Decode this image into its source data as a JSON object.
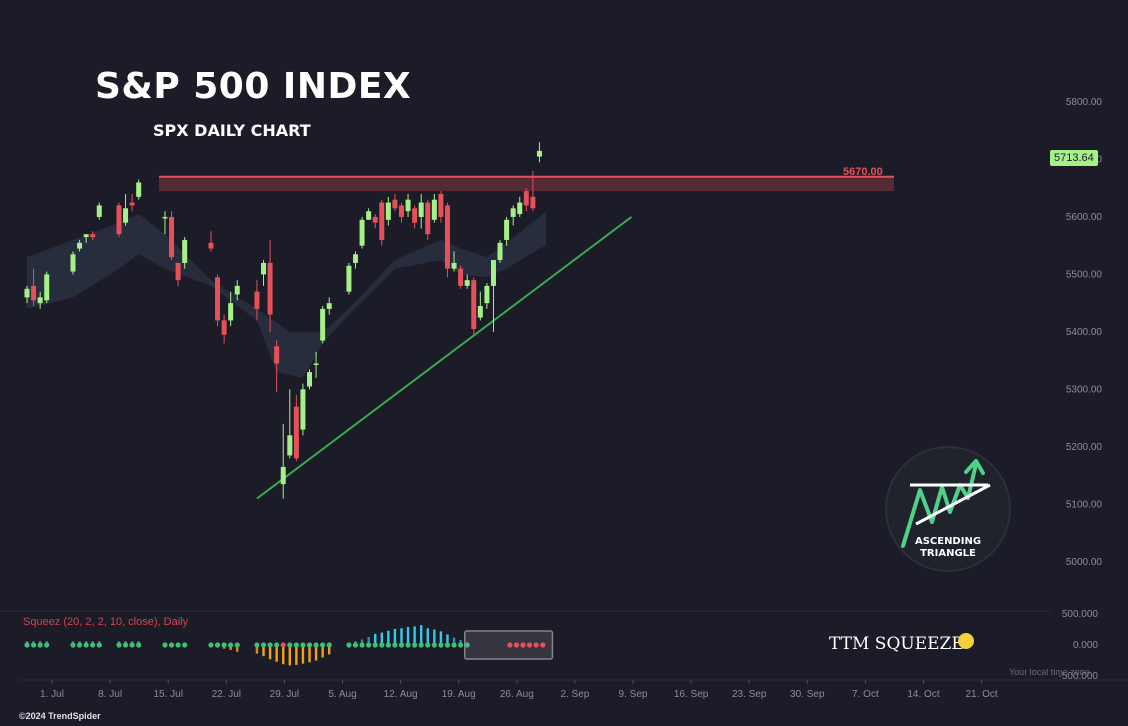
{
  "chart_data": {
    "type": "candlestick",
    "title": "S&P 500 INDEX",
    "subtitle": "SPX DAILY CHART",
    "last_price": "5713.64",
    "resistance": {
      "level": 5670,
      "label": "5670.00",
      "zone_low": 5645
    },
    "y_ticks": [
      "5800.00",
      "5700.00",
      "5600.00",
      "5500.00",
      "5400.00",
      "5300.00",
      "5200.00",
      "5100.00",
      "5000.00"
    ],
    "y_tick_values": [
      5800,
      5700,
      5600,
      5500,
      5400,
      5300,
      5200,
      5100,
      5000
    ],
    "ylim": [
      4955,
      5900
    ],
    "x_ticks": [
      "1. Jul",
      "8. Jul",
      "15. Jul",
      "22. Jul",
      "29. Jul",
      "5. Aug",
      "12. Aug",
      "19. Aug",
      "26. Aug",
      "2. Sep",
      "9. Sep",
      "16. Sep",
      "23. Sep",
      "30. Sep",
      "7. Oct",
      "14. Oct",
      "21. Oct"
    ],
    "x_tick_days": [
      0,
      7,
      14,
      21,
      28,
      35,
      42,
      49,
      56,
      63,
      70,
      77,
      84,
      91,
      98,
      105,
      112
    ],
    "trendline": {
      "from": [
        35,
        5110
      ],
      "to": [
        92,
        5600
      ]
    },
    "candles": [
      [
        0,
        5460,
        5475,
        5450,
        5480
      ],
      [
        1,
        5480,
        5455,
        5445,
        5510
      ],
      [
        2,
        5450,
        5460,
        5440,
        5470
      ],
      [
        3,
        5455,
        5500,
        5450,
        5505
      ],
      [
        7,
        5505,
        5535,
        5500,
        5540
      ],
      [
        8,
        5545,
        5555,
        5540,
        5560
      ],
      [
        9,
        5565,
        5570,
        5555,
        5570
      ],
      [
        10,
        5570,
        5565,
        5560,
        5575
      ],
      [
        11,
        5600,
        5620,
        5595,
        5625
      ],
      [
        14,
        5620,
        5570,
        5565,
        5625
      ],
      [
        15,
        5590,
        5615,
        5585,
        5640
      ],
      [
        16,
        5625,
        5620,
        5610,
        5640
      ],
      [
        17,
        5635,
        5660,
        5630,
        5665
      ],
      [
        21,
        5600,
        5600,
        5570,
        5610
      ],
      [
        22,
        5600,
        5530,
        5525,
        5610
      ],
      [
        23,
        5520,
        5490,
        5480,
        5520
      ],
      [
        24,
        5520,
        5560,
        5510,
        5565
      ],
      [
        28,
        5555,
        5545,
        5540,
        5575
      ],
      [
        29,
        5495,
        5420,
        5410,
        5500
      ],
      [
        30,
        5420,
        5395,
        5380,
        5430
      ],
      [
        31,
        5420,
        5450,
        5410,
        5470
      ],
      [
        32,
        5465,
        5480,
        5455,
        5490
      ],
      [
        35,
        5470,
        5440,
        5420,
        5490
      ],
      [
        36,
        5500,
        5520,
        5480,
        5525
      ],
      [
        37,
        5520,
        5430,
        5400,
        5560
      ],
      [
        38,
        5375,
        5345,
        5295,
        5385
      ],
      [
        39,
        5135,
        5165,
        5110,
        5240
      ],
      [
        40,
        5185,
        5220,
        5180,
        5300
      ],
      [
        41,
        5270,
        5180,
        5175,
        5290
      ],
      [
        42,
        5230,
        5300,
        5220,
        5310
      ],
      [
        43,
        5305,
        5330,
        5300,
        5335
      ],
      [
        44,
        5345,
        5345,
        5320,
        5365
      ],
      [
        45,
        5385,
        5440,
        5380,
        5445
      ],
      [
        46,
        5440,
        5450,
        5430,
        5460
      ],
      [
        49,
        5470,
        5515,
        5465,
        5520
      ],
      [
        50,
        5520,
        5535,
        5510,
        5540
      ],
      [
        51,
        5550,
        5595,
        5545,
        5600
      ],
      [
        52,
        5595,
        5610,
        5595,
        5615
      ],
      [
        53,
        5600,
        5590,
        5580,
        5605
      ],
      [
        54,
        5625,
        5560,
        5550,
        5630
      ],
      [
        55,
        5595,
        5625,
        5585,
        5635
      ],
      [
        56,
        5630,
        5615,
        5610,
        5640
      ],
      [
        57,
        5620,
        5600,
        5590,
        5625
      ],
      [
        58,
        5610,
        5630,
        5600,
        5640
      ],
      [
        59,
        5615,
        5590,
        5580,
        5620
      ],
      [
        60,
        5600,
        5625,
        5580,
        5640
      ],
      [
        61,
        5625,
        5570,
        5560,
        5630
      ],
      [
        62,
        5595,
        5630,
        5590,
        5640
      ],
      [
        63,
        5640,
        5600,
        5590,
        5645
      ],
      [
        64,
        5620,
        5510,
        5495,
        5625
      ],
      [
        65,
        5510,
        5520,
        5505,
        5540
      ],
      [
        66,
        5510,
        5480,
        5475,
        5515
      ],
      [
        67,
        5480,
        5490,
        5475,
        5500
      ],
      [
        68,
        5490,
        5405,
        5395,
        5495
      ],
      [
        69,
        5425,
        5445,
        5420,
        5470
      ],
      [
        70,
        5450,
        5480,
        5440,
        5485
      ],
      [
        71,
        5480,
        5525,
        5400,
        5525
      ],
      [
        72,
        5525,
        5555,
        5520,
        5560
      ],
      [
        73,
        5560,
        5595,
        5550,
        5600
      ],
      [
        74,
        5600,
        5615,
        5585,
        5620
      ],
      [
        75,
        5605,
        5625,
        5600,
        5635
      ],
      [
        76,
        5645,
        5620,
        5610,
        5650
      ],
      [
        77,
        5635,
        5615,
        5610,
        5680
      ],
      [
        78,
        5705,
        5715,
        5695,
        5730
      ]
    ],
    "ema_cloud": {
      "upper": [
        [
          0,
          5530
        ],
        [
          7,
          5560
        ],
        [
          14,
          5590
        ],
        [
          17,
          5605
        ],
        [
          21,
          5570
        ],
        [
          28,
          5490
        ],
        [
          35,
          5440
        ],
        [
          40,
          5400
        ],
        [
          45,
          5400
        ],
        [
          49,
          5440
        ],
        [
          56,
          5525
        ],
        [
          63,
          5560
        ],
        [
          66,
          5545
        ],
        [
          70,
          5530
        ],
        [
          73,
          5555
        ],
        [
          78,
          5600
        ],
        [
          79,
          5610
        ]
      ],
      "lower": [
        [
          0,
          5440
        ],
        [
          7,
          5460
        ],
        [
          14,
          5510
        ],
        [
          17,
          5535
        ],
        [
          21,
          5510
        ],
        [
          28,
          5480
        ],
        [
          35,
          5420
        ],
        [
          38,
          5330
        ],
        [
          42,
          5320
        ],
        [
          45,
          5380
        ],
        [
          49,
          5430
        ],
        [
          56,
          5510
        ],
        [
          63,
          5525
        ],
        [
          66,
          5500
        ],
        [
          70,
          5495
        ],
        [
          73,
          5510
        ],
        [
          78,
          5545
        ],
        [
          79,
          5550
        ]
      ]
    },
    "indicator": {
      "label": "Squeez (20, 2, 2, 10, close), Daily",
      "y_tick_labels": [
        "500.000",
        "0.000",
        "-500.000"
      ],
      "y_tick_values": [
        500,
        0,
        -500
      ],
      "momentum": [
        [
          0,
          60
        ],
        [
          1,
          60
        ],
        [
          2,
          60
        ],
        [
          3,
          60
        ],
        [
          7,
          60
        ],
        [
          8,
          60
        ],
        [
          9,
          60
        ],
        [
          10,
          60
        ],
        [
          11,
          60
        ],
        [
          14,
          60
        ],
        [
          15,
          60
        ],
        [
          16,
          60
        ],
        [
          17,
          60
        ],
        [
          21,
          30
        ],
        [
          22,
          30
        ],
        [
          23,
          20
        ],
        [
          24,
          20
        ],
        [
          28,
          10
        ],
        [
          29,
          -40
        ],
        [
          30,
          -60
        ],
        [
          31,
          -80
        ],
        [
          32,
          -110
        ],
        [
          35,
          -140
        ],
        [
          36,
          -180
        ],
        [
          37,
          -230
        ],
        [
          38,
          -270
        ],
        [
          39,
          -310
        ],
        [
          40,
          -330
        ],
        [
          41,
          -320
        ],
        [
          42,
          -300
        ],
        [
          43,
          -280
        ],
        [
          44,
          -250
        ],
        [
          45,
          -200
        ],
        [
          46,
          -150
        ],
        [
          49,
          20
        ],
        [
          50,
          60
        ],
        [
          51,
          90
        ],
        [
          52,
          130
        ],
        [
          53,
          180
        ],
        [
          54,
          200
        ],
        [
          55,
          230
        ],
        [
          56,
          260
        ],
        [
          57,
          270
        ],
        [
          58,
          290
        ],
        [
          59,
          300
        ],
        [
          60,
          320
        ],
        [
          61,
          270
        ],
        [
          62,
          250
        ],
        [
          63,
          220
        ],
        [
          64,
          170
        ],
        [
          65,
          120
        ],
        [
          66,
          80
        ],
        [
          67,
          40
        ]
      ],
      "squeeze_red": [
        39,
        73,
        74,
        75,
        76,
        77,
        78
      ],
      "box": {
        "from": 68,
        "to": 78
      },
      "ttm_label": "TTM SQUEEZE",
      "colors": {
        "pos_rising": "#35c9e8",
        "neg_falling": "#f3a31b",
        "dot_off": "#3fbf73",
        "dot_on": "#e6505a"
      }
    },
    "pattern_badge": {
      "line1": "ASCENDING",
      "line2": "TRIANGLE"
    },
    "colors": {
      "up": "#a6f08a",
      "down": "#e6505a",
      "resistance": "#e6505a",
      "trendline": "#3aa84d",
      "cloud": "#2a3042"
    },
    "timezone_note": "Your local time zone",
    "copyright": "©2024 TrendSpider"
  }
}
